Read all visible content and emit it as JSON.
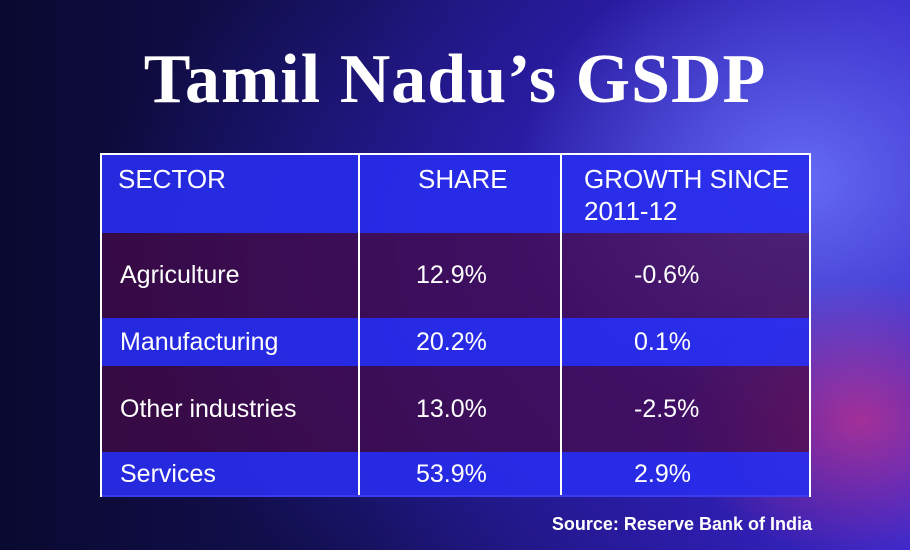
{
  "header": {
    "title": "Tamil Nadu’s GSDP"
  },
  "table": {
    "columns": [
      "SECTOR",
      "SHARE",
      "GROWTH SINCE 2011-12"
    ],
    "rows": [
      [
        "Agriculture",
        "12.9%",
        "-0.6%"
      ],
      [
        "Manufacturing",
        "20.2%",
        "0.1%"
      ],
      [
        "Other industries",
        "13.0%",
        "-2.5%"
      ],
      [
        "Services",
        "53.9%",
        "2.9%"
      ]
    ]
  },
  "source": "Source: Reserve Bank of India"
}
